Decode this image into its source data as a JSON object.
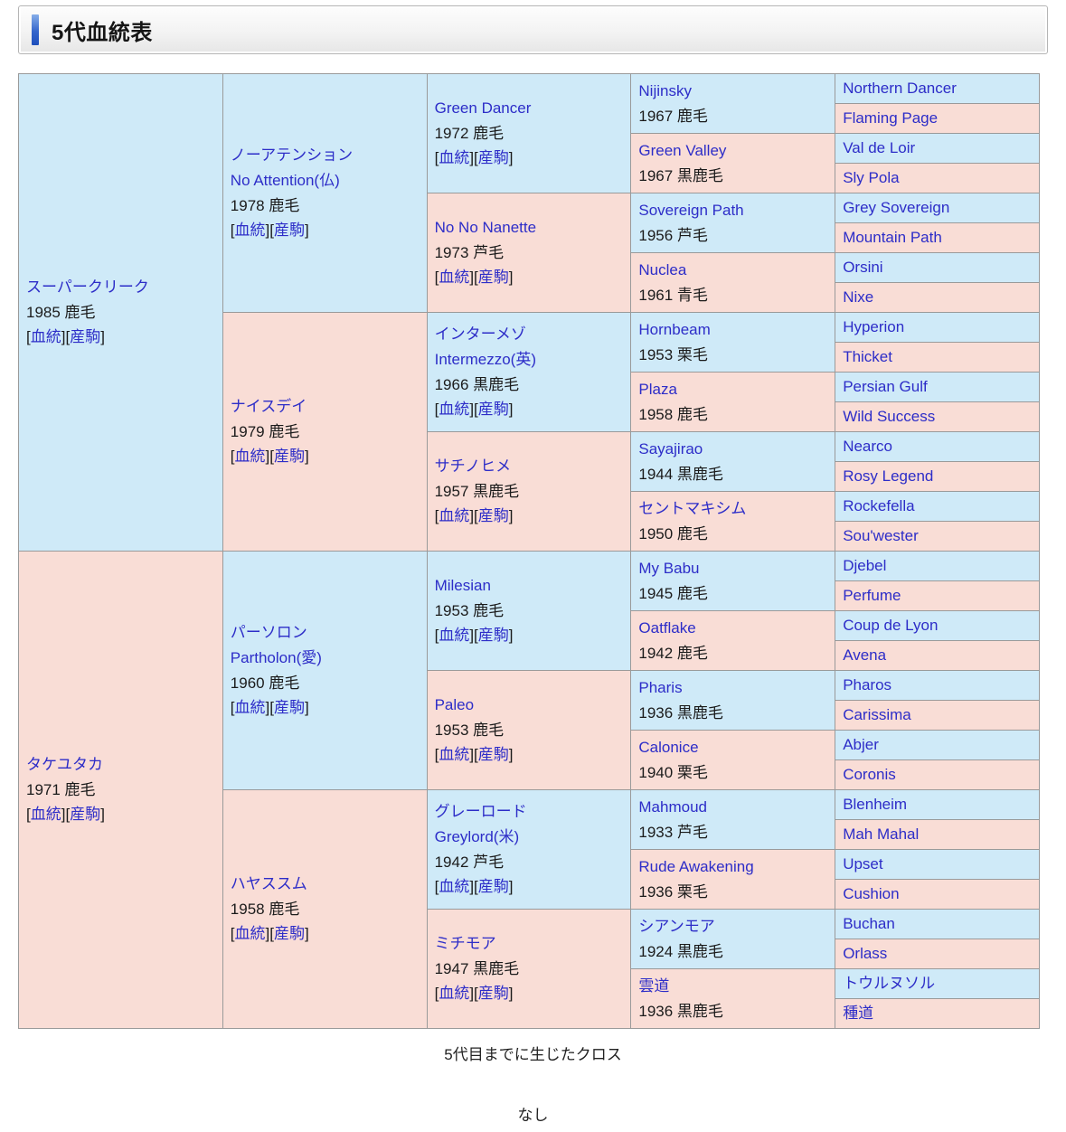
{
  "page": {
    "title": "5代血統表",
    "cross_caption": "5代目までに生じたクロス",
    "cross_value": "なし"
  },
  "labels": {
    "blood_link": "血統",
    "offspring_link": "産駒"
  },
  "colors": {
    "male_bg": "#cfeaf8",
    "female_bg": "#f9ddd6",
    "link": "#2d2dc8",
    "border": "#9a9a9a",
    "accent_bar_top": "#86aee9",
    "accent_bar_bottom": "#1e4fbc"
  },
  "pedigree": {
    "rows": 32,
    "generations": 5,
    "cells": [
      {
        "row": 0,
        "col": 0,
        "span": 16,
        "sex": "m",
        "name": "スーパークリーク",
        "sub": null,
        "year_coat": "1985 鹿毛",
        "links": true
      },
      {
        "row": 16,
        "col": 0,
        "span": 16,
        "sex": "f",
        "name": "タケユタカ",
        "sub": null,
        "year_coat": "1971 鹿毛",
        "links": true
      },
      {
        "row": 0,
        "col": 1,
        "span": 8,
        "sex": "m",
        "name": "ノーアテンション",
        "sub": "No Attention(仏)",
        "year_coat": "1978 鹿毛",
        "links": true
      },
      {
        "row": 8,
        "col": 1,
        "span": 8,
        "sex": "f",
        "name": "ナイスデイ",
        "sub": null,
        "year_coat": "1979 鹿毛",
        "links": true
      },
      {
        "row": 16,
        "col": 1,
        "span": 8,
        "sex": "m",
        "name": "パーソロン",
        "sub": "Partholon(愛)",
        "year_coat": "1960 鹿毛",
        "links": true
      },
      {
        "row": 24,
        "col": 1,
        "span": 8,
        "sex": "f",
        "name": "ハヤススム",
        "sub": null,
        "year_coat": "1958 鹿毛",
        "links": true
      },
      {
        "row": 0,
        "col": 2,
        "span": 4,
        "sex": "m",
        "name": "Green Dancer",
        "sub": null,
        "year_coat": "1972 鹿毛",
        "links": true
      },
      {
        "row": 4,
        "col": 2,
        "span": 4,
        "sex": "f",
        "name": "No No Nanette",
        "sub": null,
        "year_coat": "1973 芦毛",
        "links": true
      },
      {
        "row": 8,
        "col": 2,
        "span": 4,
        "sex": "m",
        "name": "インターメゾ",
        "sub": "Intermezzo(英)",
        "year_coat": "1966 黒鹿毛",
        "links": true
      },
      {
        "row": 12,
        "col": 2,
        "span": 4,
        "sex": "f",
        "name": "サチノヒメ",
        "sub": null,
        "year_coat": "1957 黒鹿毛",
        "links": true
      },
      {
        "row": 16,
        "col": 2,
        "span": 4,
        "sex": "m",
        "name": "Milesian",
        "sub": null,
        "year_coat": "1953 鹿毛",
        "links": true
      },
      {
        "row": 20,
        "col": 2,
        "span": 4,
        "sex": "f",
        "name": "Paleo",
        "sub": null,
        "year_coat": "1953 鹿毛",
        "links": true
      },
      {
        "row": 24,
        "col": 2,
        "span": 4,
        "sex": "m",
        "name": "グレーロード",
        "sub": "Greylord(米)",
        "year_coat": "1942 芦毛",
        "links": true
      },
      {
        "row": 28,
        "col": 2,
        "span": 4,
        "sex": "f",
        "name": "ミチモア",
        "sub": null,
        "year_coat": "1947 黒鹿毛",
        "links": true
      },
      {
        "row": 0,
        "col": 3,
        "span": 2,
        "sex": "m",
        "name": "Nijinsky",
        "sub": null,
        "year_coat": "1967 鹿毛",
        "links": false
      },
      {
        "row": 2,
        "col": 3,
        "span": 2,
        "sex": "f",
        "name": "Green Valley",
        "sub": null,
        "year_coat": "1967 黒鹿毛",
        "links": false
      },
      {
        "row": 4,
        "col": 3,
        "span": 2,
        "sex": "m",
        "name": "Sovereign Path",
        "sub": null,
        "year_coat": "1956 芦毛",
        "links": false
      },
      {
        "row": 6,
        "col": 3,
        "span": 2,
        "sex": "f",
        "name": "Nuclea",
        "sub": null,
        "year_coat": "1961 青毛",
        "links": false
      },
      {
        "row": 8,
        "col": 3,
        "span": 2,
        "sex": "m",
        "name": "Hornbeam",
        "sub": null,
        "year_coat": "1953 栗毛",
        "links": false
      },
      {
        "row": 10,
        "col": 3,
        "span": 2,
        "sex": "f",
        "name": "Plaza",
        "sub": null,
        "year_coat": "1958 鹿毛",
        "links": false
      },
      {
        "row": 12,
        "col": 3,
        "span": 2,
        "sex": "m",
        "name": "Sayajirao",
        "sub": null,
        "year_coat": "1944 黒鹿毛",
        "links": false
      },
      {
        "row": 14,
        "col": 3,
        "span": 2,
        "sex": "f",
        "name": "セントマキシム",
        "sub": null,
        "year_coat": "1950 鹿毛",
        "links": false
      },
      {
        "row": 16,
        "col": 3,
        "span": 2,
        "sex": "m",
        "name": "My Babu",
        "sub": null,
        "year_coat": "1945 鹿毛",
        "links": false
      },
      {
        "row": 18,
        "col": 3,
        "span": 2,
        "sex": "f",
        "name": "Oatflake",
        "sub": null,
        "year_coat": "1942 鹿毛",
        "links": false
      },
      {
        "row": 20,
        "col": 3,
        "span": 2,
        "sex": "m",
        "name": "Pharis",
        "sub": null,
        "year_coat": "1936 黒鹿毛",
        "links": false
      },
      {
        "row": 22,
        "col": 3,
        "span": 2,
        "sex": "f",
        "name": "Calonice",
        "sub": null,
        "year_coat": "1940 栗毛",
        "links": false
      },
      {
        "row": 24,
        "col": 3,
        "span": 2,
        "sex": "m",
        "name": "Mahmoud",
        "sub": null,
        "year_coat": "1933 芦毛",
        "links": false
      },
      {
        "row": 26,
        "col": 3,
        "span": 2,
        "sex": "f",
        "name": "Rude Awakening",
        "sub": null,
        "year_coat": "1936 栗毛",
        "links": false
      },
      {
        "row": 28,
        "col": 3,
        "span": 2,
        "sex": "m",
        "name": "シアンモア",
        "sub": null,
        "year_coat": "1924 黒鹿毛",
        "links": false
      },
      {
        "row": 30,
        "col": 3,
        "span": 2,
        "sex": "f",
        "name": "雲道",
        "sub": null,
        "year_coat": "1936 黒鹿毛",
        "links": false
      },
      {
        "row": 0,
        "col": 4,
        "span": 1,
        "sex": "m",
        "name": "Northern Dancer",
        "sub": null,
        "year_coat": null,
        "links": false
      },
      {
        "row": 1,
        "col": 4,
        "span": 1,
        "sex": "f",
        "name": "Flaming Page",
        "sub": null,
        "year_coat": null,
        "links": false
      },
      {
        "row": 2,
        "col": 4,
        "span": 1,
        "sex": "m",
        "name": "Val de Loir",
        "sub": null,
        "year_coat": null,
        "links": false
      },
      {
        "row": 3,
        "col": 4,
        "span": 1,
        "sex": "f",
        "name": "Sly Pola",
        "sub": null,
        "year_coat": null,
        "links": false
      },
      {
        "row": 4,
        "col": 4,
        "span": 1,
        "sex": "m",
        "name": "Grey Sovereign",
        "sub": null,
        "year_coat": null,
        "links": false
      },
      {
        "row": 5,
        "col": 4,
        "span": 1,
        "sex": "f",
        "name": "Mountain Path",
        "sub": null,
        "year_coat": null,
        "links": false
      },
      {
        "row": 6,
        "col": 4,
        "span": 1,
        "sex": "m",
        "name": "Orsini",
        "sub": null,
        "year_coat": null,
        "links": false
      },
      {
        "row": 7,
        "col": 4,
        "span": 1,
        "sex": "f",
        "name": "Nixe",
        "sub": null,
        "year_coat": null,
        "links": false
      },
      {
        "row": 8,
        "col": 4,
        "span": 1,
        "sex": "m",
        "name": "Hyperion",
        "sub": null,
        "year_coat": null,
        "links": false
      },
      {
        "row": 9,
        "col": 4,
        "span": 1,
        "sex": "f",
        "name": "Thicket",
        "sub": null,
        "year_coat": null,
        "links": false
      },
      {
        "row": 10,
        "col": 4,
        "span": 1,
        "sex": "m",
        "name": "Persian Gulf",
        "sub": null,
        "year_coat": null,
        "links": false
      },
      {
        "row": 11,
        "col": 4,
        "span": 1,
        "sex": "f",
        "name": "Wild Success",
        "sub": null,
        "year_coat": null,
        "links": false
      },
      {
        "row": 12,
        "col": 4,
        "span": 1,
        "sex": "m",
        "name": "Nearco",
        "sub": null,
        "year_coat": null,
        "links": false
      },
      {
        "row": 13,
        "col": 4,
        "span": 1,
        "sex": "f",
        "name": "Rosy Legend",
        "sub": null,
        "year_coat": null,
        "links": false
      },
      {
        "row": 14,
        "col": 4,
        "span": 1,
        "sex": "m",
        "name": "Rockefella",
        "sub": null,
        "year_coat": null,
        "links": false
      },
      {
        "row": 15,
        "col": 4,
        "span": 1,
        "sex": "f",
        "name": "Sou'wester",
        "sub": null,
        "year_coat": null,
        "links": false
      },
      {
        "row": 16,
        "col": 4,
        "span": 1,
        "sex": "m",
        "name": "Djebel",
        "sub": null,
        "year_coat": null,
        "links": false
      },
      {
        "row": 17,
        "col": 4,
        "span": 1,
        "sex": "f",
        "name": "Perfume",
        "sub": null,
        "year_coat": null,
        "links": false
      },
      {
        "row": 18,
        "col": 4,
        "span": 1,
        "sex": "m",
        "name": "Coup de Lyon",
        "sub": null,
        "year_coat": null,
        "links": false
      },
      {
        "row": 19,
        "col": 4,
        "span": 1,
        "sex": "f",
        "name": "Avena",
        "sub": null,
        "year_coat": null,
        "links": false
      },
      {
        "row": 20,
        "col": 4,
        "span": 1,
        "sex": "m",
        "name": "Pharos",
        "sub": null,
        "year_coat": null,
        "links": false
      },
      {
        "row": 21,
        "col": 4,
        "span": 1,
        "sex": "f",
        "name": "Carissima",
        "sub": null,
        "year_coat": null,
        "links": false
      },
      {
        "row": 22,
        "col": 4,
        "span": 1,
        "sex": "m",
        "name": "Abjer",
        "sub": null,
        "year_coat": null,
        "links": false
      },
      {
        "row": 23,
        "col": 4,
        "span": 1,
        "sex": "f",
        "name": "Coronis",
        "sub": null,
        "year_coat": null,
        "links": false
      },
      {
        "row": 24,
        "col": 4,
        "span": 1,
        "sex": "m",
        "name": "Blenheim",
        "sub": null,
        "year_coat": null,
        "links": false
      },
      {
        "row": 25,
        "col": 4,
        "span": 1,
        "sex": "f",
        "name": "Mah Mahal",
        "sub": null,
        "year_coat": null,
        "links": false
      },
      {
        "row": 26,
        "col": 4,
        "span": 1,
        "sex": "m",
        "name": "Upset",
        "sub": null,
        "year_coat": null,
        "links": false
      },
      {
        "row": 27,
        "col": 4,
        "span": 1,
        "sex": "f",
        "name": "Cushion",
        "sub": null,
        "year_coat": null,
        "links": false
      },
      {
        "row": 28,
        "col": 4,
        "span": 1,
        "sex": "m",
        "name": "Buchan",
        "sub": null,
        "year_coat": null,
        "links": false
      },
      {
        "row": 29,
        "col": 4,
        "span": 1,
        "sex": "f",
        "name": "Orlass",
        "sub": null,
        "year_coat": null,
        "links": false
      },
      {
        "row": 30,
        "col": 4,
        "span": 1,
        "sex": "m",
        "name": "トウルヌソル",
        "sub": null,
        "year_coat": null,
        "links": false
      },
      {
        "row": 31,
        "col": 4,
        "span": 1,
        "sex": "f",
        "name": "種道",
        "sub": null,
        "year_coat": null,
        "links": false
      }
    ]
  }
}
